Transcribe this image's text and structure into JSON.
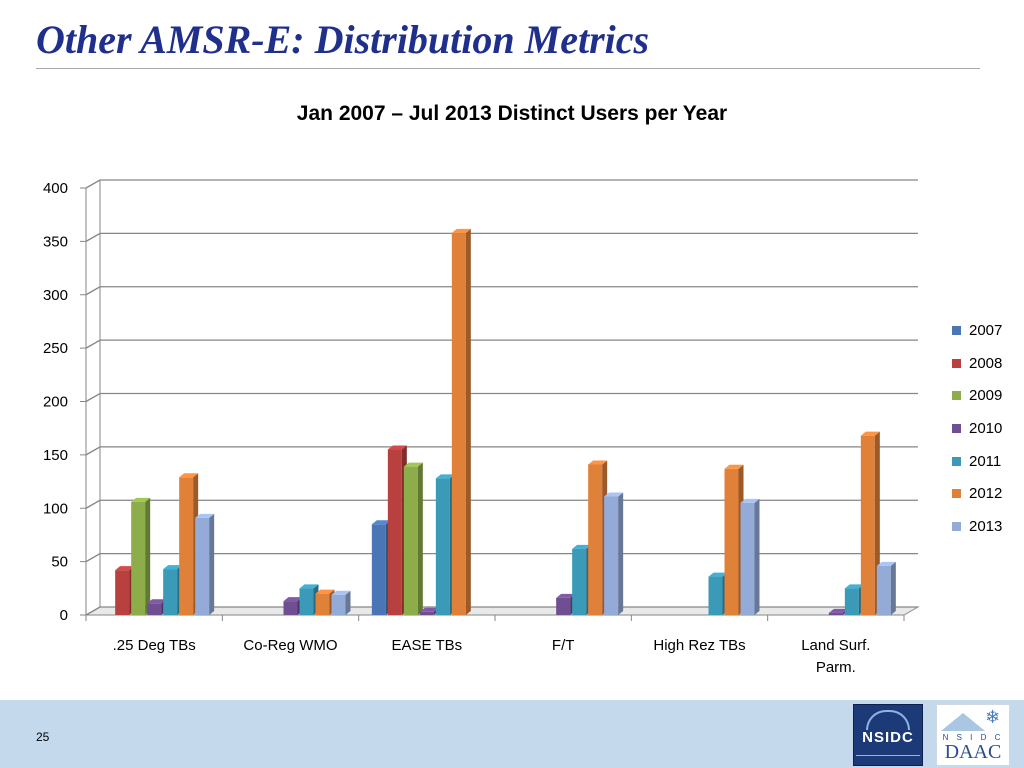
{
  "slide": {
    "title": "Other AMSR-E: Distribution Metrics",
    "page_number": "25"
  },
  "logos": {
    "nsidc": "NSIDC",
    "daac_letters": "N S I D C",
    "daac": "DAAC"
  },
  "colors": {
    "title": "#1f2f8c",
    "footer": "#c5d9ec"
  },
  "chart_data": {
    "type": "bar",
    "style": "3d-clustered-column",
    "title": "Jan 2007 – Jul 2013 Distinct Users per Year",
    "xlabel": "",
    "ylabel": "",
    "ylim": [
      0,
      400
    ],
    "yticks": [
      "0",
      "50",
      "100",
      "150",
      "200",
      "250",
      "300",
      "350",
      "400"
    ],
    "grid": true,
    "legend_position": "right",
    "categories": [
      ".25 Deg TBs",
      "Co-Reg WMO",
      "EASE TBs",
      "F/T",
      "High Rez TBs",
      "Land Surf. Parm."
    ],
    "category_lines": [
      [
        ".25 Deg TBs"
      ],
      [
        "Co-Reg WMO"
      ],
      [
        "EASE TBs"
      ],
      [
        "F/T"
      ],
      [
        "High Rez TBs"
      ],
      [
        "Land Surf.",
        "Parm."
      ]
    ],
    "series": [
      {
        "name": "2007",
        "color": "#4a76b6",
        "values": [
          0,
          0,
          85,
          0,
          0,
          0
        ]
      },
      {
        "name": "2008",
        "color": "#b8403f",
        "values": [
          42,
          0,
          155,
          0,
          0,
          0
        ]
      },
      {
        "name": "2009",
        "color": "#8cad4a",
        "values": [
          106,
          0,
          139,
          0,
          0,
          0
        ]
      },
      {
        "name": "2010",
        "color": "#6f4e91",
        "values": [
          11,
          13,
          3,
          16,
          0,
          2
        ]
      },
      {
        "name": "2011",
        "color": "#3a9ab8",
        "values": [
          43,
          25,
          128,
          62,
          36,
          25
        ]
      },
      {
        "name": "2012",
        "color": "#e0813a",
        "values": [
          129,
          20,
          358,
          141,
          137,
          168
        ]
      },
      {
        "name": "2013",
        "color": "#93abd6",
        "values": [
          91,
          19,
          0,
          111,
          105,
          46
        ]
      }
    ]
  }
}
